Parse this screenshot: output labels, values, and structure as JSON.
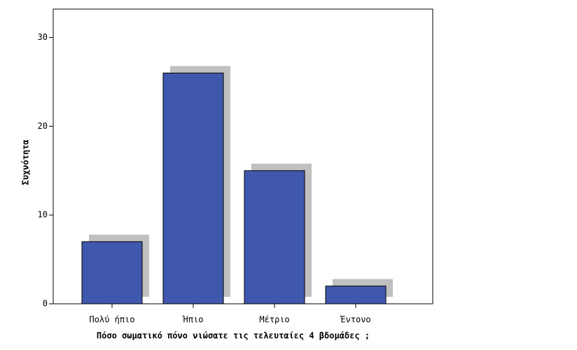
{
  "chart_data": {
    "type": "bar",
    "x_label": "Πόσο σωματικό πόνο νιώσατε τις τελευταίες 4 βδομάδες ;",
    "y_label": "Συχνότητα",
    "categories": [
      "Πολύ ήπιο",
      "Ήπιο",
      "Μέτριο",
      "Έντονο"
    ],
    "values": [
      7,
      26,
      15,
      2
    ],
    "color": "#3f58ae",
    "shadow_color": "#c0c0c0",
    "ylim": [
      0,
      33.2
    ],
    "yticks": [
      0,
      10,
      20,
      30
    ],
    "grid": false
  }
}
